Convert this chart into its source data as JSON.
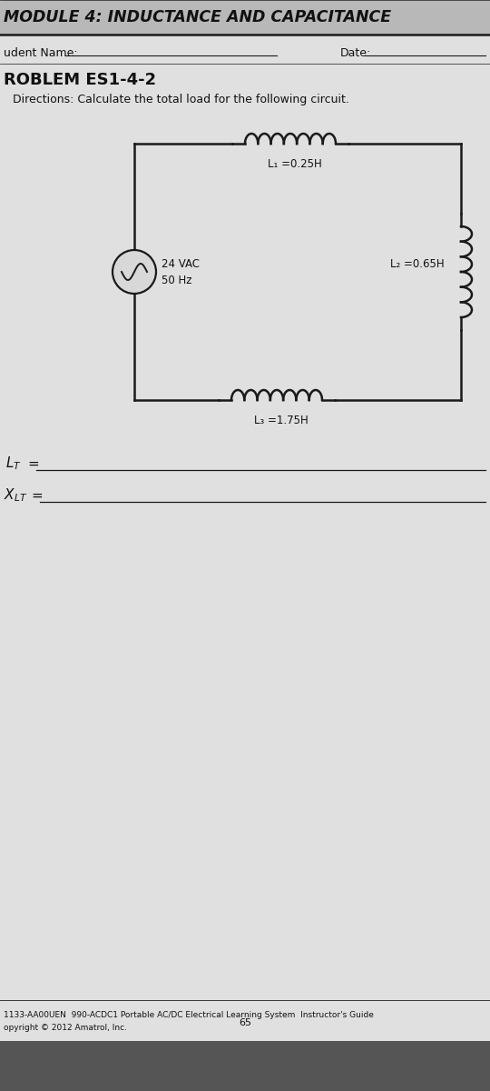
{
  "bg_color": "#c8c8c8",
  "page_bg": "#e0e0e0",
  "title": "MODULE 4: INDUCTANCE AND CAPACITANCE",
  "student_label": "udent Name:",
  "date_label": "Date:",
  "problem_title": "ROBLEM ES1-4-2",
  "directions": "Directions: Calculate the total load for the following circuit.",
  "L1_label": "L₁ =0.25H",
  "L2_label": "L₂ =0.65H",
  "L3_label": "L₃ =1.75H",
  "footer_line1": "1133-AA00UEN  990-ACDC1 Portable AC/DC Electrical Learning System  Instructor's Guide",
  "footer_line2": "opyright © 2012 Amatrol, Inc.",
  "footer_page": "65",
  "line_color": "#1a1a1a",
  "text_color": "#111111",
  "header_bg": "#b8b8b8",
  "circuit_bg": "#d8d8d8"
}
